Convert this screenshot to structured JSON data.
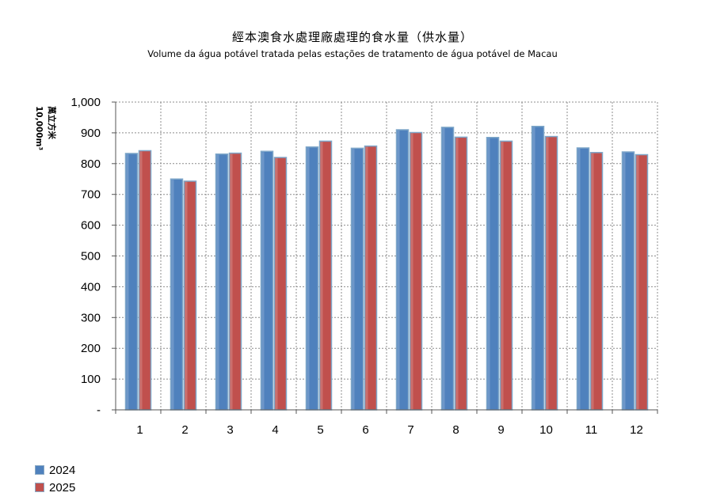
{
  "chart_data": {
    "type": "bar",
    "title": "經本澳食水處理廠處理的食水量（供水量）",
    "subtitle": "Volume da água potável tratada pelas estações de tratamento de água potável de Macau",
    "ylabel_zh": "萬立方米",
    "ylabel_unit": "10,000m³",
    "categories": [
      "1",
      "2",
      "3",
      "4",
      "5",
      "6",
      "7",
      "8",
      "9",
      "10",
      "11",
      "12"
    ],
    "ylim": [
      0,
      1000
    ],
    "yticks": [
      "-",
      "100",
      "200",
      "300",
      "400",
      "500",
      "600",
      "700",
      "800",
      "900",
      "1,000"
    ],
    "grid": true,
    "legend_position": "bottom-left",
    "series": [
      {
        "name": "2024",
        "color": "#4f81bd",
        "values": [
          833,
          750,
          831,
          840,
          854,
          850,
          910,
          918,
          885,
          921,
          851,
          838
        ]
      },
      {
        "name": "2025",
        "color": "#c0504d",
        "values": [
          842,
          743,
          834,
          820,
          873,
          857,
          901,
          886,
          873,
          888,
          836,
          829
        ]
      }
    ]
  }
}
